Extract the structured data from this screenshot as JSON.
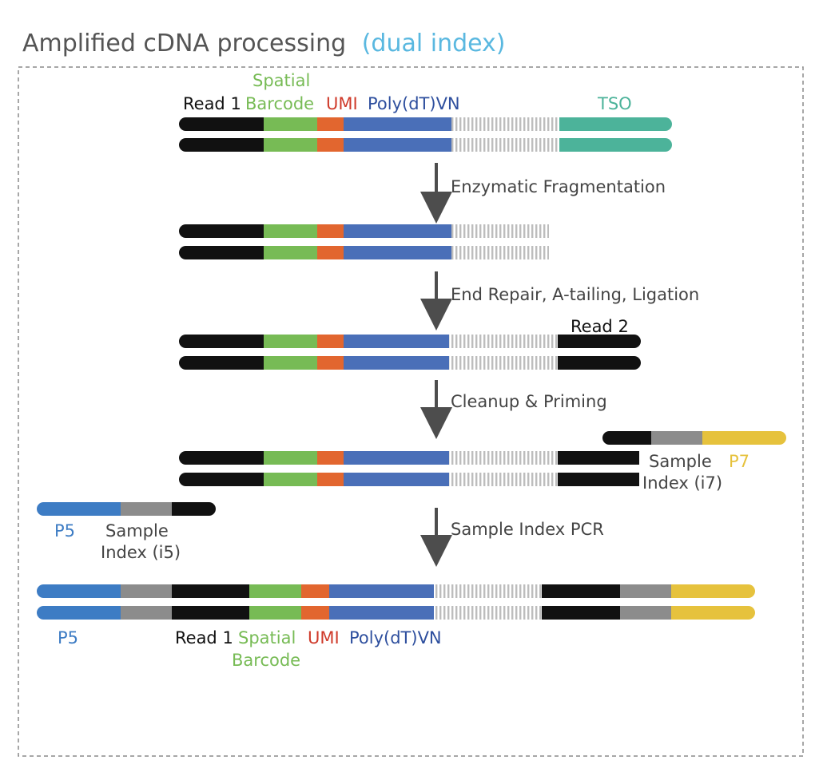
{
  "title": {
    "main": "Amplified cDNA processing",
    "sub": "(dual index)"
  },
  "steps": [
    "Enzymatic Fragmentation",
    "End Repair, A-tailing, Ligation",
    "Cleanup & Priming",
    "Sample Index PCR"
  ],
  "labels": {
    "read1": "Read 1",
    "spatial": "Spatial",
    "barcode": "Barcode",
    "umi": "UMI",
    "polydt": "Poly(dT)VN",
    "tso": "TSO",
    "read2": "Read 2",
    "sample": "Sample",
    "p7": "P7",
    "index_i7": "Index (i7)",
    "p5": "P5",
    "index_i5": "Index (i5)"
  },
  "colors": {
    "read": "#111111",
    "barcode": "#77bb55",
    "umi": "#e2662f",
    "polydt": "#4a6fb8",
    "tso": "#4cb39a",
    "index": "#8c8c8c",
    "p5": "#3d7cc4",
    "p7": "#e6c23d",
    "insert": "#bdbdbd",
    "title_sub": "#5ab8e0",
    "label_umi": "#cf3a2a",
    "label_polydt": "#2e4f9e",
    "arrow": "#4d4d4d",
    "frame": "#8a8a8a"
  }
}
